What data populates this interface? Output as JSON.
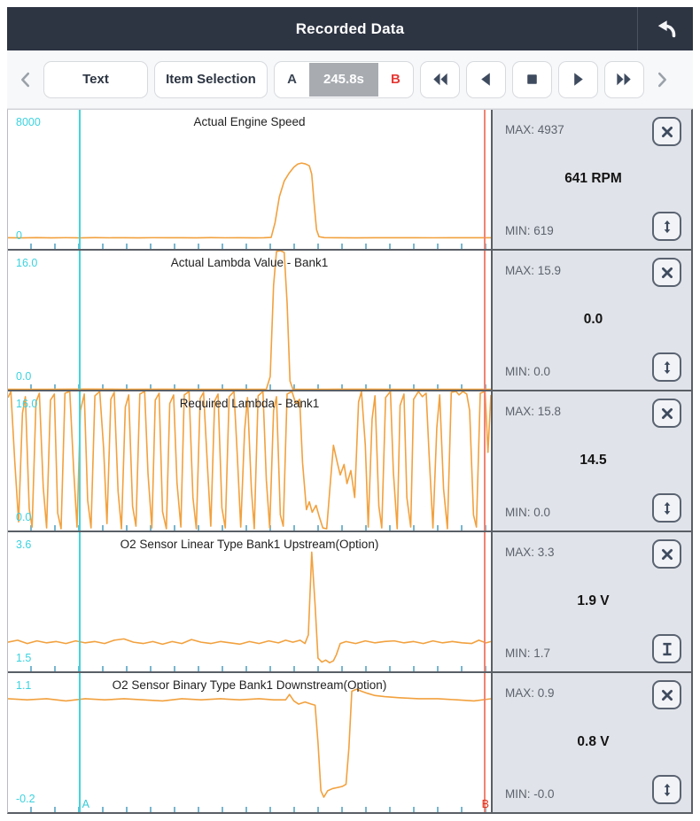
{
  "header": {
    "title": "Recorded Data"
  },
  "toolbar": {
    "text_button": "Text",
    "item_selection_button": "Item Selection",
    "marker_a": "A",
    "time_value": "245.8s",
    "marker_b": "B"
  },
  "cursors": {
    "a_label": "A",
    "b_label": "B",
    "a_percent": 14.6,
    "b_percent": 98.6,
    "a_color": "#43d3dd",
    "b_color": "#f28373"
  },
  "colors": {
    "titlebar": "#2d3442",
    "waveform_orange": "#f2a13e",
    "axis_label_cyan": "#3bd2df",
    "panel_background": "#e0e3e9",
    "marker_b_red": "#e53935",
    "tick_blue": "#78b6cf"
  },
  "chart_data": [
    {
      "type": "line",
      "title": "Actual Engine Speed",
      "y_top_label": "8000",
      "y_bottom_label": "0",
      "ylim": [
        0,
        8000
      ],
      "max_label": "MAX: 4937",
      "min_label": "MIN: 619",
      "value_label": "641 RPM",
      "resize_icon": "arrows",
      "series": [
        [
          0,
          640
        ],
        [
          3,
          632
        ],
        [
          6,
          645
        ],
        [
          9,
          636
        ],
        [
          12,
          643
        ],
        [
          15,
          635
        ],
        [
          18,
          644
        ],
        [
          21,
          637
        ],
        [
          24,
          642
        ],
        [
          27,
          635
        ],
        [
          30,
          643
        ],
        [
          33,
          638
        ],
        [
          36,
          641
        ],
        [
          39,
          635
        ],
        [
          42,
          644
        ],
        [
          45,
          637
        ],
        [
          48,
          641
        ],
        [
          51,
          636
        ],
        [
          53,
          642
        ],
        [
          54.5,
          660
        ],
        [
          55.3,
          1500
        ],
        [
          56.2,
          3000
        ],
        [
          57.2,
          3900
        ],
        [
          58.2,
          4350
        ],
        [
          59.2,
          4700
        ],
        [
          60,
          4880
        ],
        [
          60.8,
          4937
        ],
        [
          61.6,
          4890
        ],
        [
          62.4,
          4780
        ],
        [
          62.9,
          4300
        ],
        [
          63.4,
          2600
        ],
        [
          63.9,
          1100
        ],
        [
          64.4,
          700
        ],
        [
          65.5,
          648
        ],
        [
          68,
          640
        ],
        [
          72,
          636
        ],
        [
          76,
          642
        ],
        [
          80,
          638
        ],
        [
          84,
          641
        ],
        [
          88,
          637
        ],
        [
          92,
          642
        ],
        [
          96,
          638
        ],
        [
          100,
          641
        ]
      ]
    },
    {
      "type": "line",
      "title": "Actual Lambda Value - Bank1",
      "y_top_label": "16.0",
      "y_bottom_label": "0.0",
      "ylim": [
        0,
        16
      ],
      "max_label": "MAX: 15.9",
      "min_label": "MIN: 0.0",
      "value_label": "0.0",
      "resize_icon": "arrows",
      "series": [
        [
          0,
          0.05
        ],
        [
          8,
          0.05
        ],
        [
          16,
          0.07
        ],
        [
          24,
          0.05
        ],
        [
          32,
          0.06
        ],
        [
          40,
          0.05
        ],
        [
          48,
          0.05
        ],
        [
          53.5,
          0.05
        ],
        [
          54.3,
          1.5
        ],
        [
          55,
          12
        ],
        [
          55.6,
          15.9
        ],
        [
          56.4,
          16
        ],
        [
          57.2,
          15.8
        ],
        [
          57.8,
          10
        ],
        [
          58.4,
          1
        ],
        [
          59,
          0.05
        ],
        [
          66,
          0.05
        ],
        [
          74,
          0.06
        ],
        [
          82,
          0.05
        ],
        [
          90,
          0.05
        ],
        [
          100,
          0.05
        ]
      ]
    },
    {
      "type": "line",
      "title": "Required Lambda - Bank1",
      "y_top_label": "16.0",
      "y_bottom_label": "0.0",
      "ylim": [
        0,
        16
      ],
      "max_label": "MAX: 15.8",
      "min_label": "MIN: 0.0",
      "value_label": "14.5",
      "resize_icon": "arrows",
      "series": [
        [
          0,
          15.3
        ],
        [
          0.6,
          16
        ],
        [
          1.4,
          8
        ],
        [
          2.2,
          1
        ],
        [
          3,
          13.5
        ],
        [
          3.6,
          15.4
        ],
        [
          4.4,
          2.5
        ],
        [
          5,
          0.4
        ],
        [
          5.8,
          14.8
        ],
        [
          6.5,
          15.8
        ],
        [
          7.3,
          5
        ],
        [
          8,
          0.3
        ],
        [
          8.8,
          15
        ],
        [
          9.6,
          15.7
        ],
        [
          10.3,
          2
        ],
        [
          11,
          0.2
        ],
        [
          11.8,
          15.8
        ],
        [
          12.8,
          16
        ],
        [
          13.6,
          7
        ],
        [
          14.3,
          0.4
        ],
        [
          15,
          13.8
        ],
        [
          15.8,
          15.7
        ],
        [
          16.5,
          3.5
        ],
        [
          17.2,
          0.3
        ],
        [
          18,
          15.5
        ],
        [
          19,
          16
        ],
        [
          19.8,
          9.5
        ],
        [
          20.5,
          0.8
        ],
        [
          21.3,
          15.1
        ],
        [
          22,
          15.9
        ],
        [
          22.8,
          4.5
        ],
        [
          23.5,
          0.2
        ],
        [
          24.3,
          14.2
        ],
        [
          25,
          15.6
        ],
        [
          25.8,
          2.8
        ],
        [
          26.5,
          0.5
        ],
        [
          27.3,
          15.7
        ],
        [
          28.3,
          16
        ],
        [
          29,
          6.5
        ],
        [
          29.8,
          0.3
        ],
        [
          30.5,
          15
        ],
        [
          31.3,
          15.8
        ],
        [
          32,
          2.2
        ],
        [
          32.8,
          0.2
        ],
        [
          33.5,
          14.6
        ],
        [
          34.3,
          15.6
        ],
        [
          35,
          5.5
        ],
        [
          35.8,
          0.4
        ],
        [
          36.5,
          15.6
        ],
        [
          37.5,
          16
        ],
        [
          38.3,
          3.8
        ],
        [
          39,
          0.2
        ],
        [
          39.8,
          15.2
        ],
        [
          40.5,
          15.9
        ],
        [
          41.3,
          7.5
        ],
        [
          42,
          0.5
        ],
        [
          42.8,
          14.9
        ],
        [
          43.5,
          15.7
        ],
        [
          44.3,
          2.6
        ],
        [
          45,
          0.3
        ],
        [
          45.8,
          15.4
        ],
        [
          46.8,
          16
        ],
        [
          47.5,
          8.5
        ],
        [
          48.2,
          0.4
        ],
        [
          49,
          11.5
        ],
        [
          49.6,
          15.3
        ],
        [
          50.4,
          4.8
        ],
        [
          51,
          0.2
        ],
        [
          51.8,
          15.5
        ],
        [
          52.8,
          16
        ],
        [
          53.5,
          5.8
        ],
        [
          54.2,
          0.3
        ],
        [
          55,
          13.8
        ],
        [
          55.6,
          15.4
        ],
        [
          56.4,
          1.8
        ],
        [
          57,
          0.5
        ],
        [
          57.8,
          15.7
        ],
        [
          58.8,
          16
        ],
        [
          59.6,
          14.6
        ],
        [
          60.4,
          15.1
        ],
        [
          61,
          7.8
        ],
        [
          61.8,
          2.4
        ],
        [
          62.4,
          3.3
        ],
        [
          63,
          2.1
        ],
        [
          63.8,
          2.9
        ],
        [
          64.4,
          1.7
        ],
        [
          65.2,
          0.3
        ],
        [
          66,
          0.2
        ],
        [
          66.8,
          5.8
        ],
        [
          67.4,
          9.8
        ],
        [
          68.2,
          7.8
        ],
        [
          68.8,
          6.4
        ],
        [
          69.6,
          7.6
        ],
        [
          70.2,
          5.4
        ],
        [
          71,
          6.9
        ],
        [
          71.8,
          3.8
        ],
        [
          72.6,
          14.8
        ],
        [
          73.2,
          16
        ],
        [
          74,
          9.8
        ],
        [
          74.6,
          0.4
        ],
        [
          75.4,
          12.8
        ],
        [
          76,
          15.5
        ],
        [
          76.8,
          2.8
        ],
        [
          77.4,
          0.3
        ],
        [
          78.2,
          15.3
        ],
        [
          79.2,
          16
        ],
        [
          79.8,
          6.8
        ],
        [
          80.6,
          0.2
        ],
        [
          81.2,
          14.4
        ],
        [
          82,
          15.7
        ],
        [
          82.6,
          3.8
        ],
        [
          83.4,
          0.4
        ],
        [
          84,
          15.1
        ],
        [
          85,
          16
        ],
        [
          85.8,
          15.4
        ],
        [
          86.6,
          15.8
        ],
        [
          87.2,
          8.8
        ],
        [
          88,
          0.3
        ],
        [
          88.8,
          11.8
        ],
        [
          89.4,
          15.6
        ],
        [
          90.2,
          4.8
        ],
        [
          91,
          0.2
        ],
        [
          91.8,
          15.9
        ],
        [
          92.8,
          16
        ],
        [
          93.4,
          15.6
        ],
        [
          94.2,
          16
        ],
        [
          95,
          15.7
        ],
        [
          95.6,
          13.8
        ],
        [
          96.4,
          1.8
        ],
        [
          97,
          0.4
        ],
        [
          97.8,
          15.8
        ],
        [
          98.8,
          16
        ],
        [
          99.4,
          9
        ],
        [
          100,
          15.6
        ]
      ]
    },
    {
      "type": "line",
      "title": "O2 Sensor Linear Type Bank1 Upstream(Option)",
      "y_top_label": "3.6",
      "y_bottom_label": "1.5",
      "ylim": [
        1.5,
        3.6
      ],
      "max_label": "MAX: 3.3",
      "min_label": "MIN: 1.7",
      "value_label": "1.9 V",
      "resize_icon": "i-beam",
      "series": [
        [
          0,
          1.94
        ],
        [
          2,
          1.97
        ],
        [
          4,
          1.92
        ],
        [
          6,
          1.96
        ],
        [
          8,
          1.93
        ],
        [
          10,
          1.95
        ],
        [
          12,
          1.92
        ],
        [
          14,
          1.96
        ],
        [
          16,
          1.93
        ],
        [
          18,
          1.95
        ],
        [
          20,
          1.92
        ],
        [
          22,
          1.97
        ],
        [
          24,
          1.99
        ],
        [
          26,
          1.94
        ],
        [
          28,
          1.92
        ],
        [
          30,
          1.95
        ],
        [
          32,
          1.91
        ],
        [
          34,
          1.95
        ],
        [
          36,
          1.92
        ],
        [
          38,
          1.98
        ],
        [
          40,
          1.94
        ],
        [
          42,
          1.92
        ],
        [
          44,
          1.95
        ],
        [
          46,
          1.93
        ],
        [
          48,
          1.91
        ],
        [
          50,
          1.95
        ],
        [
          52,
          1.92
        ],
        [
          54,
          1.96
        ],
        [
          56,
          1.93
        ],
        [
          57.5,
          1.97
        ],
        [
          59,
          1.94
        ],
        [
          60.5,
          1.97
        ],
        [
          61.5,
          1.92
        ],
        [
          62.2,
          2.05
        ],
        [
          62.9,
          3.3
        ],
        [
          63.6,
          2.5
        ],
        [
          64.2,
          1.7
        ],
        [
          65,
          1.64
        ],
        [
          65.8,
          1.67
        ],
        [
          66.6,
          1.63
        ],
        [
          67.4,
          1.66
        ],
        [
          68,
          1.75
        ],
        [
          68.8,
          1.92
        ],
        [
          70,
          1.95
        ],
        [
          72,
          1.92
        ],
        [
          74,
          1.96
        ],
        [
          76,
          1.93
        ],
        [
          78,
          1.95
        ],
        [
          80,
          1.96
        ],
        [
          82,
          1.93
        ],
        [
          84,
          1.95
        ],
        [
          86,
          1.92
        ],
        [
          88,
          1.96
        ],
        [
          90,
          1.93
        ],
        [
          92,
          1.95
        ],
        [
          94,
          1.93
        ],
        [
          96,
          1.92
        ],
        [
          97.5,
          1.97
        ],
        [
          99,
          1.93
        ],
        [
          100,
          1.95
        ]
      ]
    },
    {
      "type": "line",
      "title": "O2 Sensor Binary Type Bank1 Downstream(Option)",
      "y_top_label": "1.1",
      "y_bottom_label": "-0.2",
      "ylim": [
        -0.2,
        1.1
      ],
      "max_label": "MAX: 0.9",
      "min_label": "MIN: -0.0",
      "value_label": "0.8 V",
      "resize_icon": "arrows",
      "series": [
        [
          0,
          0.86
        ],
        [
          4,
          0.85
        ],
        [
          8,
          0.86
        ],
        [
          12,
          0.84
        ],
        [
          16,
          0.86
        ],
        [
          20,
          0.85
        ],
        [
          24,
          0.86
        ],
        [
          28,
          0.85
        ],
        [
          32,
          0.84
        ],
        [
          36,
          0.86
        ],
        [
          40,
          0.85
        ],
        [
          44,
          0.86
        ],
        [
          48,
          0.85
        ],
        [
          52,
          0.86
        ],
        [
          55,
          0.85
        ],
        [
          57.5,
          0.85
        ],
        [
          58.3,
          0.9
        ],
        [
          59.2,
          0.84
        ],
        [
          60.2,
          0.81
        ],
        [
          61.5,
          0.83
        ],
        [
          62.8,
          0.81
        ],
        [
          63.6,
          0.8
        ],
        [
          64.2,
          0.45
        ],
        [
          64.8,
          0
        ],
        [
          65.4,
          -0.06
        ],
        [
          66.2,
          0
        ],
        [
          67.2,
          0.02
        ],
        [
          68.2,
          0.03
        ],
        [
          69.2,
          0.04
        ],
        [
          70,
          0.06
        ],
        [
          70.6,
          0.4
        ],
        [
          71.2,
          0.93
        ],
        [
          72.2,
          0.95
        ],
        [
          73.2,
          0.93
        ],
        [
          74.5,
          0.91
        ],
        [
          76,
          0.89
        ],
        [
          78,
          0.88
        ],
        [
          81,
          0.87
        ],
        [
          85,
          0.86
        ],
        [
          89,
          0.86
        ],
        [
          93,
          0.85
        ],
        [
          96.5,
          0.84
        ],
        [
          100,
          0.86
        ]
      ]
    }
  ]
}
